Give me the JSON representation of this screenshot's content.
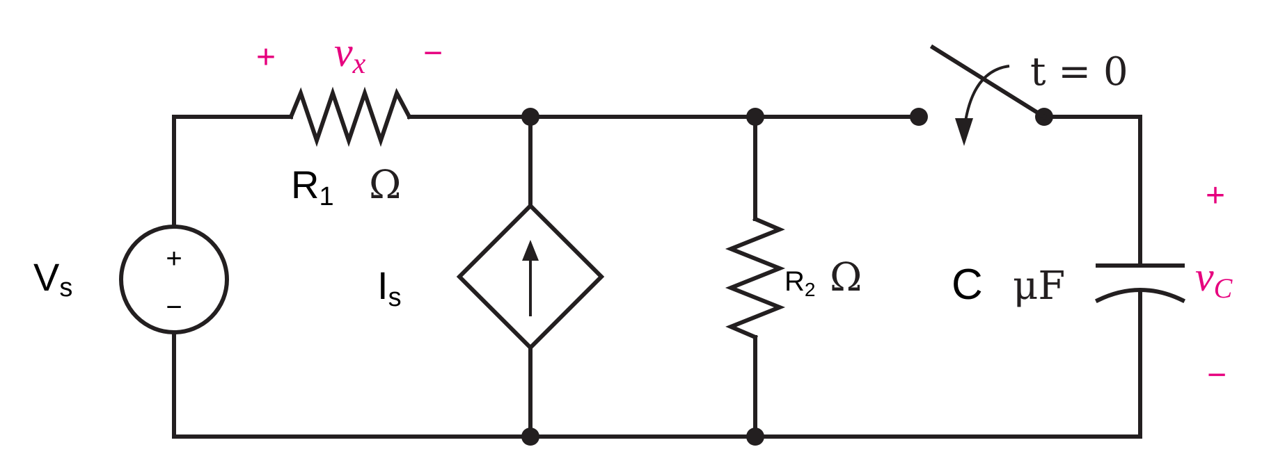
{
  "colors": {
    "wire": "#231f20",
    "accent": "#e6007e"
  },
  "source": {
    "name": "V",
    "sub": "s",
    "plus": "+",
    "minus": "−"
  },
  "resistor1": {
    "name": "R",
    "sub": "1",
    "unit": "Ω",
    "voltage_var": "v",
    "voltage_sub": "x",
    "plus": "+",
    "minus": "−"
  },
  "current_source": {
    "name": "I",
    "sub": "s"
  },
  "resistor2": {
    "name": "R",
    "sub": "2",
    "unit": "Ω"
  },
  "switch": {
    "label": "t = 0"
  },
  "capacitor": {
    "name": "C",
    "unit": "μF",
    "voltage_var": "v",
    "voltage_sub": "C",
    "plus": "+",
    "minus": "−"
  }
}
